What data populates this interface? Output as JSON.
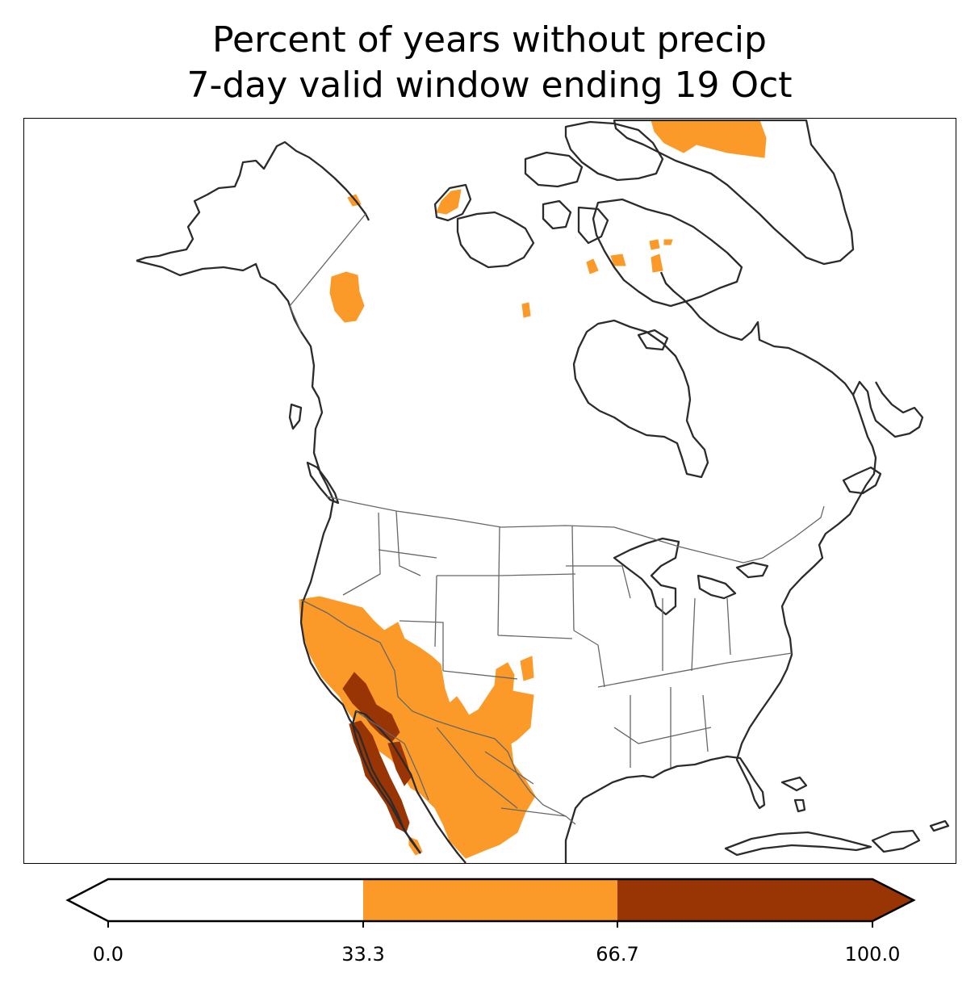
{
  "title": {
    "line1": "Percent of years without precip",
    "line2": "7-day valid window ending 19 Oct"
  },
  "legend": {
    "colors": [
      "#ffffff",
      "#fb9a29",
      "#993404"
    ],
    "ticks": [
      "0.0",
      "33.3",
      "66.7",
      "100.0"
    ],
    "extend": "both"
  },
  "map": {
    "region": "North America",
    "fill_colors": {
      "orange": "#fb9a29",
      "brown": "#993404"
    },
    "line_colors": {
      "coast": "#2b2b2b",
      "border": "#666666"
    }
  }
}
